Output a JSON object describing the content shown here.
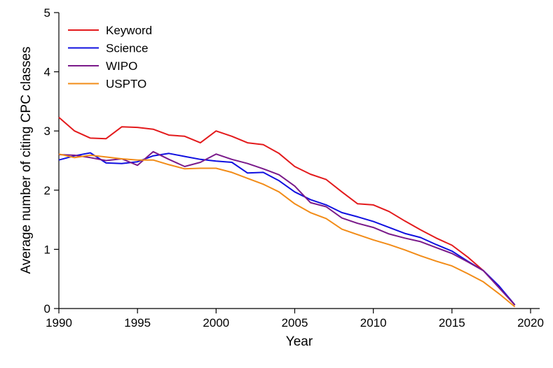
{
  "chart_data": {
    "type": "line",
    "title": "",
    "xlabel": "Year",
    "ylabel": "Average number of citing CPC classes",
    "xlim": [
      1990,
      2021
    ],
    "ylim": [
      0,
      5
    ],
    "xticks": [
      1990,
      1995,
      2000,
      2005,
      2010,
      2015,
      2020
    ],
    "yticks": [
      0,
      1,
      2,
      3,
      4,
      5
    ],
    "grid": false,
    "legend_position": "top-left",
    "x": [
      1990,
      1991,
      1992,
      1993,
      1994,
      1995,
      1996,
      1997,
      1998,
      1999,
      2000,
      2001,
      2002,
      2003,
      2004,
      2005,
      2006,
      2007,
      2008,
      2009,
      2010,
      2011,
      2012,
      2013,
      2014,
      2015,
      2016,
      2017,
      2018,
      2019
    ],
    "series": [
      {
        "name": "Keyword",
        "color": "#e31a1c",
        "values": [
          3.23,
          3.0,
          2.88,
          2.87,
          3.07,
          3.06,
          3.03,
          2.93,
          2.91,
          2.8,
          3.0,
          2.91,
          2.8,
          2.77,
          2.62,
          2.4,
          2.27,
          2.18,
          1.97,
          1.77,
          1.75,
          1.64,
          1.48,
          1.33,
          1.19,
          1.07,
          0.87,
          0.64,
          0.37,
          0.06
        ]
      },
      {
        "name": "Science",
        "color": "#1010e0",
        "values": [
          2.51,
          2.58,
          2.63,
          2.46,
          2.45,
          2.48,
          2.58,
          2.62,
          2.57,
          2.52,
          2.49,
          2.47,
          2.29,
          2.3,
          2.16,
          1.97,
          1.84,
          1.75,
          1.62,
          1.55,
          1.47,
          1.37,
          1.27,
          1.2,
          1.08,
          0.97,
          0.8,
          0.64,
          0.38,
          0.06
        ]
      },
      {
        "name": "WIPO",
        "color": "#7a1a8a",
        "values": [
          2.6,
          2.59,
          2.55,
          2.5,
          2.53,
          2.42,
          2.65,
          2.52,
          2.4,
          2.47,
          2.61,
          2.52,
          2.45,
          2.36,
          2.26,
          2.07,
          1.79,
          1.72,
          1.53,
          1.44,
          1.37,
          1.26,
          1.19,
          1.13,
          1.03,
          0.93,
          0.79,
          0.64,
          0.35,
          0.06
        ]
      },
      {
        "name": "USPTO",
        "color": "#f28c18",
        "values": [
          2.61,
          2.55,
          2.59,
          2.56,
          2.53,
          2.51,
          2.51,
          2.43,
          2.36,
          2.37,
          2.37,
          2.3,
          2.2,
          2.1,
          1.97,
          1.77,
          1.62,
          1.52,
          1.34,
          1.25,
          1.16,
          1.08,
          0.99,
          0.89,
          0.8,
          0.72,
          0.59,
          0.45,
          0.25,
          0.03
        ]
      }
    ]
  }
}
